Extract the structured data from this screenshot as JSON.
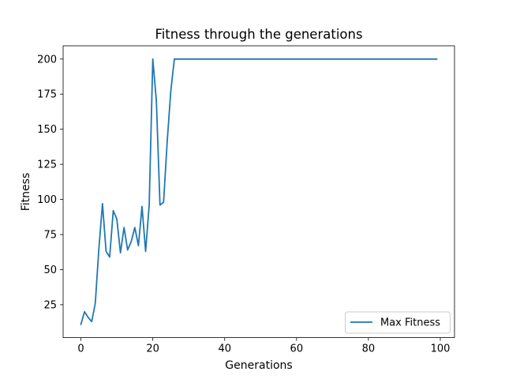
{
  "chart_data": {
    "type": "line",
    "title": "Fitness through the generations",
    "xlabel": "Generations",
    "ylabel": "Fitness",
    "xlim": [
      -4.95,
      103.95
    ],
    "ylim": [
      1.55,
      209.45
    ],
    "xticks": [
      0,
      20,
      40,
      60,
      80,
      100
    ],
    "yticks": [
      25,
      50,
      75,
      100,
      125,
      150,
      175,
      200
    ],
    "grid": false,
    "legend_position": "lower-right",
    "series": [
      {
        "name": "Max Fitness",
        "color": "#1f77b4",
        "x": [
          0,
          1,
          2,
          3,
          4,
          5,
          6,
          7,
          8,
          9,
          10,
          11,
          12,
          13,
          14,
          15,
          16,
          17,
          18,
          19,
          20,
          21,
          22,
          23,
          24,
          25,
          26,
          99
        ],
        "values": [
          11,
          20,
          16,
          13,
          26,
          65,
          97,
          63,
          59,
          92,
          86,
          62,
          80,
          64,
          70,
          80,
          67,
          95,
          63,
          96,
          200,
          170,
          96,
          98,
          141,
          177,
          200,
          200
        ]
      }
    ]
  }
}
